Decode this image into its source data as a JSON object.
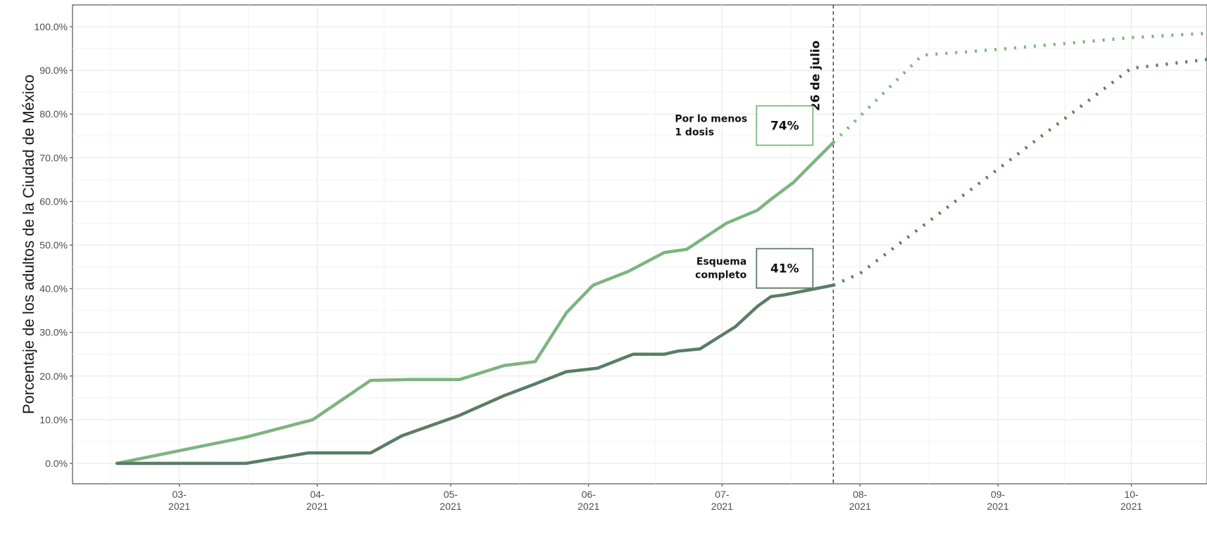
{
  "chart_data": {
    "type": "line",
    "title": "",
    "xlabel": "",
    "ylabel": "Porcentaje de los adultos de la Ciudad de México",
    "ylim": [
      0,
      100
    ],
    "xlim": [
      "2021-02-05",
      "2021-10-18"
    ],
    "grid": true,
    "y_ticks": [
      "0.0%",
      "10.0%",
      "20.0%",
      "30.0%",
      "40.0%",
      "50.0%",
      "60.0%",
      "70.0%",
      "80.0%",
      "90.0%",
      "100.0%"
    ],
    "y_tick_values": [
      0,
      10,
      20,
      30,
      40,
      50,
      60,
      70,
      80,
      90,
      100
    ],
    "x_ticks": [
      {
        "date": "2021-03-01",
        "line1": "03-",
        "line2": "2021"
      },
      {
        "date": "2021-04-01",
        "line1": "04-",
        "line2": "2021"
      },
      {
        "date": "2021-05-01",
        "line1": "05-",
        "line2": "2021"
      },
      {
        "date": "2021-06-01",
        "line1": "06-",
        "line2": "2021"
      },
      {
        "date": "2021-07-01",
        "line1": "07-",
        "line2": "2021"
      },
      {
        "date": "2021-08-01",
        "line1": "08-",
        "line2": "2021"
      },
      {
        "date": "2021-09-01",
        "line1": "09-",
        "line2": "2021"
      },
      {
        "date": "2021-10-01",
        "line1": "10-",
        "line2": "2021"
      }
    ],
    "reference_line": {
      "date": "2021-07-26",
      "label": "26 de julio"
    },
    "series": [
      {
        "color": "#7db47e",
        "points": [
          [
            "2021-02-15",
            0
          ],
          [
            "2021-03-16",
            6
          ],
          [
            "2021-03-31",
            10
          ],
          [
            "2021-04-13",
            19
          ],
          [
            "2021-04-22",
            19.2
          ],
          [
            "2021-05-03",
            19.2
          ],
          [
            "2021-05-13",
            22.4
          ],
          [
            "2021-05-20",
            23.3
          ],
          [
            "2021-05-27",
            34.5
          ],
          [
            "2021-06-02",
            40.8
          ],
          [
            "2021-06-10",
            44
          ],
          [
            "2021-06-18",
            48.3
          ],
          [
            "2021-06-23",
            49
          ],
          [
            "2021-06-29",
            53
          ],
          [
            "2021-07-02",
            55
          ],
          [
            "2021-07-09",
            58
          ],
          [
            "2021-07-12",
            60.5
          ],
          [
            "2021-07-17",
            64.3
          ],
          [
            "2021-07-26",
            73.5
          ]
        ],
        "projection": [
          [
            "2021-07-26",
            73.5
          ],
          [
            "2021-08-15",
            93.5
          ],
          [
            "2021-09-01",
            94.8
          ],
          [
            "2021-10-01",
            97.5
          ],
          [
            "2021-10-18",
            98.5
          ]
        ],
        "annotation": {
          "label_line1": "Por lo menos",
          "label_line2": "1 dosis",
          "value": "74%"
        }
      },
      {
        "color": "#5a7d64",
        "points": [
          [
            "2021-02-15",
            0
          ],
          [
            "2021-03-16",
            0
          ],
          [
            "2021-03-30",
            2.4
          ],
          [
            "2021-04-13",
            2.4
          ],
          [
            "2021-04-20",
            6.3
          ],
          [
            "2021-05-03",
            11
          ],
          [
            "2021-05-13",
            15.5
          ],
          [
            "2021-05-20",
            18.2
          ],
          [
            "2021-05-27",
            21
          ],
          [
            "2021-06-03",
            21.8
          ],
          [
            "2021-06-11",
            25
          ],
          [
            "2021-06-18",
            25
          ],
          [
            "2021-06-21",
            25.7
          ],
          [
            "2021-06-26",
            26.2
          ],
          [
            "2021-07-04",
            31.3
          ],
          [
            "2021-07-09",
            36
          ],
          [
            "2021-07-12",
            38.2
          ],
          [
            "2021-07-15",
            38.6
          ],
          [
            "2021-07-26",
            40.8
          ]
        ],
        "projection": [
          [
            "2021-07-26",
            40.8
          ],
          [
            "2021-08-01",
            43.5
          ],
          [
            "2021-10-01",
            90.5
          ],
          [
            "2021-10-18",
            92.5
          ]
        ],
        "annotation": {
          "label_line1": "Esquema",
          "label_line2": "completo",
          "value": "41%"
        }
      }
    ]
  }
}
